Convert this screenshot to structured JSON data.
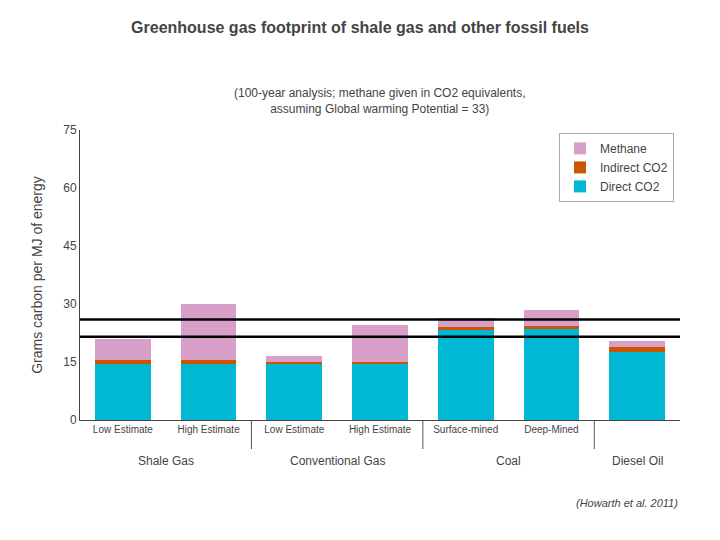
{
  "chart_data": {
    "type": "bar",
    "title": "Greenhouse gas footprint of shale gas and other fossil fuels",
    "subtitle": "(100-year analysis; methane given in CO2 equivalents,\nassuming Global warming Potential = 33)",
    "ylabel": "Grams carbon per MJ of energy",
    "categories": [
      "Low Estimate",
      "High Estimate",
      "Low Estimate",
      "High Estimate",
      "Surface-mined",
      "Deep-Mined",
      null
    ],
    "series": [
      {
        "name": "Direct CO2",
        "color": "#00b8d4",
        "values": [
          14.5,
          14.5,
          14.5,
          14.5,
          23.5,
          23.5,
          17.5
        ]
      },
      {
        "name": "Indirect CO2",
        "color": "#cc5500",
        "values": [
          1.0,
          1.0,
          0.5,
          0.5,
          0.5,
          0.8,
          1.5
        ]
      },
      {
        "name": "Methane",
        "color": "#d8a0c8",
        "values": [
          5.5,
          14.5,
          1.5,
          9.5,
          2.5,
          4.2,
          1.5
        ]
      }
    ],
    "stacked": true,
    "hlines": [
      21.5,
      26.0
    ],
    "annotations": [
      {
        "text": "Shale Gas",
        "at": [
          0,
          1
        ]
      },
      {
        "text": "Conventional Gas",
        "at": [
          2,
          3
        ]
      },
      {
        "text": "Coal",
        "at": [
          4,
          5
        ]
      },
      {
        "text": "Diesel Oil",
        "at": [
          6
        ]
      }
    ],
    "citation": "(Howarth et al. 2011)",
    "ylim": [
      0,
      75
    ],
    "yticks": [
      0,
      15,
      30,
      45,
      60,
      75
    ],
    "grid": false,
    "legend": "upper right"
  }
}
